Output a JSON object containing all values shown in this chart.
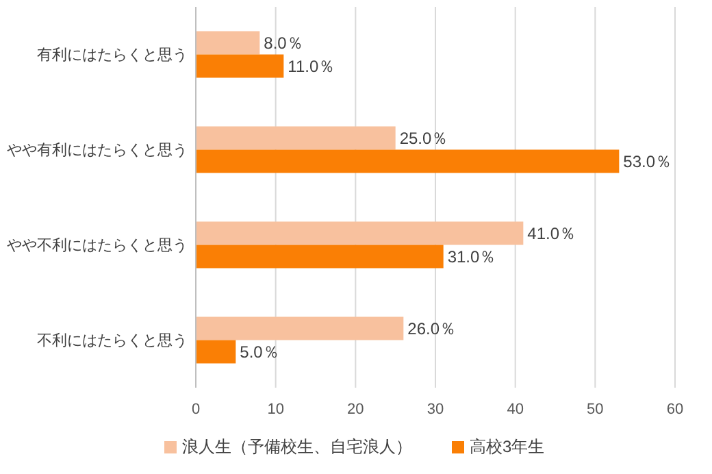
{
  "chart_data": {
    "type": "bar",
    "orientation": "horizontal",
    "categories": [
      "有利にはたらくと思う",
      "やや有利にはたらくと思う",
      "やや不利にはたらくと思う",
      "不利にはたらくと思う"
    ],
    "series": [
      {
        "name": "浪人生（予備校生、自宅浪人）",
        "color": "#f8c19e",
        "values": [
          8.0,
          25.0,
          41.0,
          26.0
        ],
        "value_labels": [
          "8.0％",
          "25.0％",
          "41.0％",
          "26.0％"
        ]
      },
      {
        "name": "高校3年生",
        "color": "#fa7f05",
        "values": [
          11.0,
          53.0,
          31.0,
          5.0
        ],
        "value_labels": [
          "11.0％",
          "53.0％",
          "31.0％",
          "5.0％"
        ]
      }
    ],
    "xlim": [
      0,
      60
    ],
    "xticks": [
      0,
      10,
      20,
      30,
      40,
      50,
      60
    ],
    "grid": "x",
    "legend": "bottom"
  }
}
